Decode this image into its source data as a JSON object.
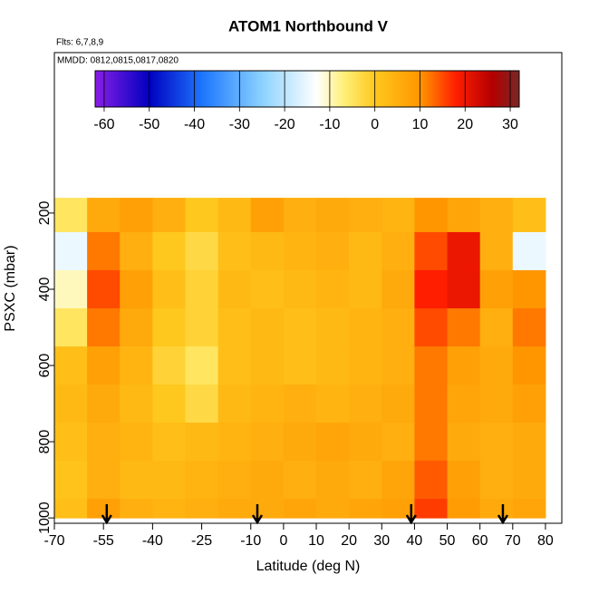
{
  "chart_data": {
    "type": "heatmap",
    "title": "ATOM1 Northbound V",
    "subtitle": "Flts: 6,7,8,9",
    "annotation": "MMDD: 0812,0815,0817,0820",
    "xlabel": "Latitude (deg N)",
    "ylabel": "PSXC (mbar)",
    "xlim": [
      -70,
      85
    ],
    "xticks": [
      -70,
      -55,
      -40,
      -25,
      -10,
      0,
      10,
      20,
      30,
      40,
      50,
      60,
      70,
      80
    ],
    "ylim": [
      1014,
      -221
    ],
    "yticks": [
      200,
      400,
      600,
      800,
      1000
    ],
    "x_bins": [
      -70,
      -60,
      -50,
      -40,
      -30,
      -20,
      -10,
      0,
      10,
      20,
      30,
      40,
      50,
      60,
      70,
      80
    ],
    "y_bins": [
      160,
      250,
      350,
      450,
      550,
      650,
      750,
      850,
      950,
      1000
    ],
    "values": [
      [
        -5,
        6,
        8,
        5,
        0,
        3,
        8,
        5,
        6,
        5,
        4,
        10,
        7,
        5,
        2
      ],
      [
        -15,
        12,
        5,
        0,
        -3,
        2,
        3,
        4,
        5,
        3,
        5,
        15,
        20,
        5,
        -15
      ],
      [
        -10,
        15,
        8,
        2,
        -2,
        3,
        2,
        3,
        4,
        3,
        6,
        18,
        20,
        8,
        10
      ],
      [
        -5,
        12,
        6,
        0,
        -2,
        2,
        3,
        2,
        3,
        4,
        5,
        15,
        12,
        5,
        12
      ],
      [
        2,
        8,
        4,
        -2,
        -5,
        2,
        3,
        2,
        3,
        4,
        5,
        12,
        8,
        6,
        10
      ],
      [
        3,
        6,
        3,
        0,
        -3,
        3,
        4,
        5,
        4,
        5,
        6,
        12,
        7,
        6,
        8
      ],
      [
        2,
        5,
        4,
        2,
        3,
        4,
        5,
        6,
        7,
        6,
        5,
        12,
        6,
        5,
        6
      ],
      [
        1,
        5,
        3,
        3,
        4,
        5,
        6,
        5,
        6,
        5,
        7,
        14,
        8,
        5,
        6
      ],
      [
        2,
        8,
        5,
        4,
        5,
        6,
        6,
        7,
        6,
        7,
        8,
        16,
        9,
        6,
        7
      ]
    ],
    "arrows": [
      -54,
      -8,
      39,
      67
    ],
    "colorbar": {
      "lim": [
        -62,
        32
      ],
      "ticks": [
        -60,
        -50,
        -40,
        -30,
        -20,
        -10,
        0,
        10,
        20,
        30
      ],
      "stops": [
        {
          "value": -62,
          "color": "#8a1ee6"
        },
        {
          "value": -50,
          "color": "#0000c0"
        },
        {
          "value": -38,
          "color": "#1e78ff"
        },
        {
          "value": -25,
          "color": "#8cd2ff"
        },
        {
          "value": -13,
          "color": "#ffffff"
        },
        {
          "value": -7,
          "color": "#fff07a"
        },
        {
          "value": 0,
          "color": "#ffc81e"
        },
        {
          "value": 10,
          "color": "#ff9600"
        },
        {
          "value": 18,
          "color": "#ff1e00"
        },
        {
          "value": 26,
          "color": "#b40000"
        },
        {
          "value": 32,
          "color": "#782828"
        }
      ]
    }
  }
}
